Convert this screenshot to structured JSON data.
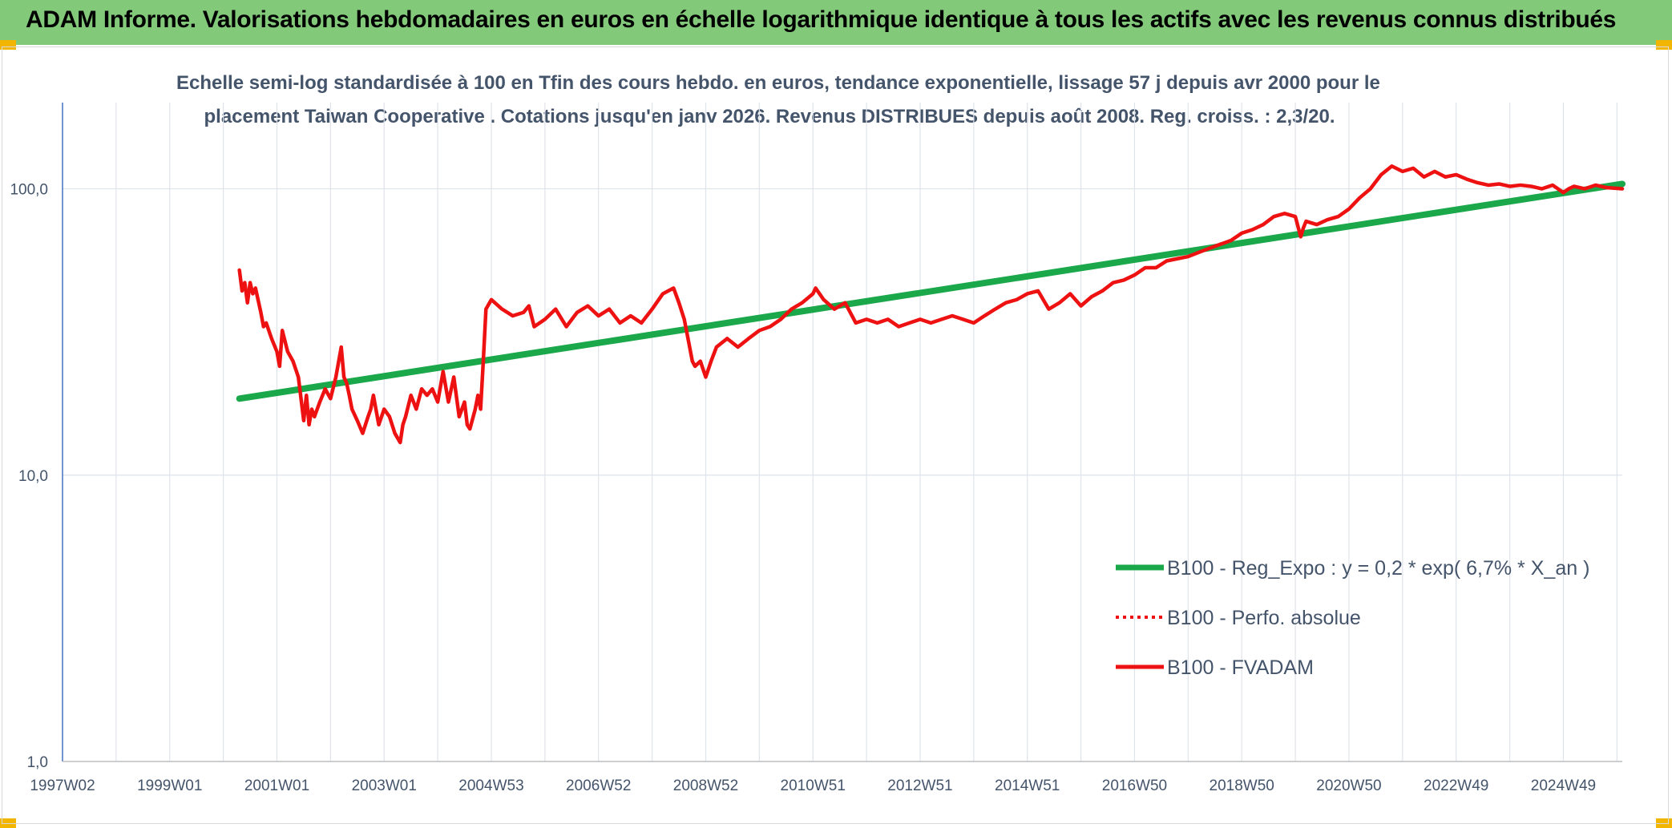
{
  "header": {
    "title": "ADAM Informe. Valorisations hebdomadaires en euros en échelle logarithmique identique à tous les actifs avec les revenus connus distribués"
  },
  "colors": {
    "banner": "#82c97a",
    "corner_accent": "#f2b600",
    "regression": "#1aa84a",
    "series": "#ee1111",
    "axis": "#4472c4",
    "grid": "#dfe3ea",
    "text": "#44546a"
  },
  "chart_data": {
    "type": "line",
    "title_line1": "Echelle semi-log standardisée à 100 en Tfin des cours hebdo. en euros, tendance exponentielle, lissage 57 j depuis avr 2000 pour le",
    "title_line2": "placement Taiwan Cooperative . Cotations jusqu'en janv 2026. Revenus DISTRIBUES depuis août 2008. Reg. croiss. : 2,3/20.",
    "y_scale": "log",
    "ylim": [
      1,
      200
    ],
    "y_ticks": [
      {
        "value": 1,
        "label": "1,0"
      },
      {
        "value": 10,
        "label": "10,0"
      },
      {
        "value": 100,
        "label": "100,0"
      }
    ],
    "xlim": [
      1997.0,
      2026.1
    ],
    "x_ticks": [
      {
        "value": 1997.0,
        "label": "1997W02"
      },
      {
        "value": 1999.0,
        "label": "1999W01"
      },
      {
        "value": 2001.0,
        "label": "2001W01"
      },
      {
        "value": 2003.0,
        "label": "2003W01"
      },
      {
        "value": 2005.0,
        "label": "2004W53"
      },
      {
        "value": 2007.0,
        "label": "2006W52"
      },
      {
        "value": 2009.0,
        "label": "2008W52"
      },
      {
        "value": 2011.0,
        "label": "2010W51"
      },
      {
        "value": 2013.0,
        "label": "2012W51"
      },
      {
        "value": 2015.0,
        "label": "2014W51"
      },
      {
        "value": 2017.0,
        "label": "2016W50"
      },
      {
        "value": 2019.0,
        "label": "2018W50"
      },
      {
        "value": 2021.0,
        "label": "2020W50"
      },
      {
        "value": 2023.0,
        "label": "2022W49"
      },
      {
        "value": 2025.0,
        "label": "2024W49"
      }
    ],
    "grid": true,
    "legend_position": "bottom-right",
    "legend": [
      {
        "label": "B100 - Reg_Expo : y = 0,2 * exp( 6,7% *  X_an )",
        "style": "solid-thick",
        "color": "#1aa84a"
      },
      {
        "label": "B100 - Perfo. absolue",
        "style": "dotted",
        "color": "#ee1111"
      },
      {
        "label": "B100 - FVADAM",
        "style": "solid",
        "color": "#ee1111"
      }
    ],
    "series": [
      {
        "name": "B100 - Reg_Expo : y = 0,2 * exp( 6,7% *  X_an )",
        "x": [
          2000.3,
          2026.1
        ],
        "y": [
          18.5,
          104
        ]
      },
      {
        "name": "B100 - FVADAM",
        "x": [
          2000.3,
          2000.35,
          2000.4,
          2000.45,
          2000.5,
          2000.55,
          2000.6,
          2000.7,
          2000.75,
          2000.8,
          2000.9,
          2001.0,
          2001.05,
          2001.1,
          2001.2,
          2001.3,
          2001.4,
          2001.5,
          2001.55,
          2001.6,
          2001.65,
          2001.7,
          2001.8,
          2001.9,
          2002.0,
          2002.1,
          2002.2,
          2002.25,
          2002.3,
          2002.35,
          2002.4,
          2002.5,
          2002.6,
          2002.7,
          2002.75,
          2002.8,
          2002.9,
          2003.0,
          2003.1,
          2003.2,
          2003.3,
          2003.35,
          2003.4,
          2003.5,
          2003.6,
          2003.7,
          2003.8,
          2003.9,
          2004.0,
          2004.1,
          2004.2,
          2004.3,
          2004.4,
          2004.5,
          2004.55,
          2004.6,
          2004.7,
          2004.75,
          2004.8,
          2004.85,
          2004.9,
          2005.0,
          2005.2,
          2005.4,
          2005.6,
          2005.7,
          2005.8,
          2006.0,
          2006.2,
          2006.4,
          2006.6,
          2006.8,
          2007.0,
          2007.2,
          2007.4,
          2007.6,
          2007.8,
          2008.0,
          2008.2,
          2008.4,
          2008.5,
          2008.6,
          2008.7,
          2008.75,
          2008.8,
          2008.9,
          2009.0,
          2009.1,
          2009.2,
          2009.4,
          2009.6,
          2009.8,
          2010.0,
          2010.2,
          2010.4,
          2010.6,
          2010.8,
          2011.0,
          2011.05,
          2011.2,
          2011.4,
          2011.6,
          2011.8,
          2012.0,
          2012.2,
          2012.4,
          2012.6,
          2012.8,
          2013.0,
          2013.2,
          2013.4,
          2013.6,
          2013.8,
          2014.0,
          2014.2,
          2014.4,
          2014.6,
          2014.8,
          2015.0,
          2015.2,
          2015.4,
          2015.6,
          2015.8,
          2016.0,
          2016.2,
          2016.4,
          2016.6,
          2016.8,
          2017.0,
          2017.2,
          2017.4,
          2017.6,
          2017.8,
          2018.0,
          2018.2,
          2018.4,
          2018.6,
          2018.8,
          2019.0,
          2019.2,
          2019.4,
          2019.6,
          2019.8,
          2020.0,
          2020.1,
          2020.15,
          2020.2,
          2020.4,
          2020.6,
          2020.8,
          2021.0,
          2021.2,
          2021.4,
          2021.6,
          2021.8,
          2022.0,
          2022.2,
          2022.4,
          2022.6,
          2022.8,
          2023.0,
          2023.2,
          2023.4,
          2023.6,
          2023.8,
          2024.0,
          2024.2,
          2024.4,
          2024.6,
          2024.8,
          2025.0,
          2025.1,
          2025.2,
          2025.4,
          2025.6,
          2025.8,
          2026.1
        ],
        "y": [
          52,
          44,
          47,
          40,
          47,
          43,
          45,
          37,
          33,
          34,
          30,
          27,
          24,
          32,
          27,
          25,
          22,
          15.5,
          19,
          15,
          17,
          16,
          18,
          20,
          18.5,
          22,
          28,
          22,
          21,
          19,
          17,
          15.5,
          14,
          16,
          17,
          19,
          15,
          17,
          16,
          14,
          13,
          15,
          16,
          19,
          17,
          20,
          19,
          20,
          18,
          23,
          18,
          22,
          16,
          18,
          15,
          14.5,
          17,
          19,
          17,
          25,
          38,
          41,
          38,
          36,
          37,
          39,
          33,
          35,
          38,
          33,
          37,
          39,
          36,
          38,
          34,
          36,
          34,
          38,
          43,
          45,
          40,
          35,
          28,
          25,
          24,
          25,
          22,
          25,
          28,
          30,
          28,
          30,
          32,
          33,
          35,
          38,
          40,
          43,
          45,
          41,
          38,
          40,
          34,
          35,
          34,
          35,
          33,
          34,
          35,
          34,
          35,
          36,
          35,
          34,
          36,
          38,
          40,
          41,
          43,
          44,
          38,
          40,
          43,
          39,
          42,
          44,
          47,
          48,
          50,
          53,
          53,
          56,
          57,
          58,
          60,
          62,
          64,
          66,
          70,
          72,
          75,
          80,
          82,
          80,
          68,
          73,
          77,
          75,
          78,
          80,
          85,
          93,
          100,
          112,
          120,
          115,
          118,
          110,
          115,
          110,
          112,
          108,
          105,
          103,
          104,
          102,
          103,
          102,
          100,
          103,
          97,
          100,
          102,
          100,
          103,
          101,
          100
        ]
      }
    ]
  }
}
